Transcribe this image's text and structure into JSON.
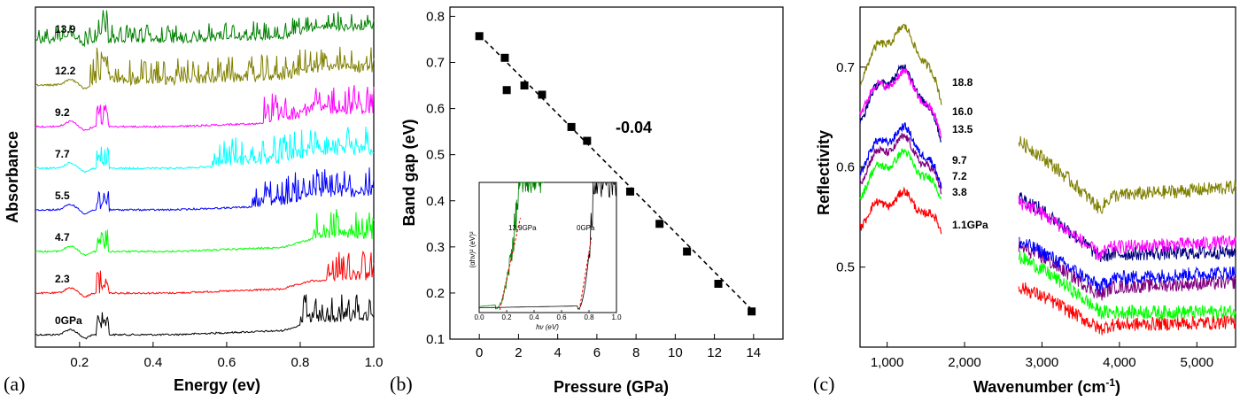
{
  "chart_data": [
    {
      "panel": "(a)",
      "type": "line",
      "xlabel": "Energy (ev)",
      "ylabel": "Absorbance",
      "xlim": [
        0.08,
        1.0
      ],
      "xticks": [
        "0.2",
        "0.4",
        "0.6",
        "0.8",
        "1.0"
      ],
      "grid": false,
      "series": [
        {
          "name": "0GPa",
          "color": "#000000",
          "offset": 0,
          "noise_start": 0.8
        },
        {
          "name": "2.3",
          "color": "#ff0000",
          "offset": 1,
          "noise_start": 0.87
        },
        {
          "name": "4.7",
          "color": "#00ff00",
          "offset": 2,
          "noise_start": 0.83
        },
        {
          "name": "5.5",
          "color": "#0000ff",
          "offset": 3,
          "noise_start": 0.67
        },
        {
          "name": "7.7",
          "color": "#00ffff",
          "offset": 4,
          "noise_start": 0.56
        },
        {
          "name": "9.2",
          "color": "#ff00ff",
          "offset": 5,
          "noise_start": 0.7
        },
        {
          "name": "12.2",
          "color": "#808000",
          "offset": 6,
          "noise_start": 0.23
        },
        {
          "name": "13.9",
          "color": "#008000",
          "offset": 7,
          "noise_start": 0.08
        }
      ]
    },
    {
      "panel": "(b)",
      "type": "scatter",
      "xlabel": "Pressure (GPa)",
      "ylabel": "Band gap (eV)",
      "xlim": [
        -1.5,
        15.5
      ],
      "ylim": [
        0.1,
        0.82
      ],
      "xticks": [
        0,
        2,
        4,
        6,
        8,
        10,
        12,
        14
      ],
      "yticks": [
        0.1,
        0.2,
        0.3,
        0.4,
        0.5,
        0.6,
        0.7,
        0.8
      ],
      "x": [
        0,
        1.3,
        1.4,
        2.3,
        3.2,
        4.7,
        5.5,
        7.7,
        9.2,
        10.6,
        12.2,
        13.9
      ],
      "y": [
        0.757,
        0.71,
        0.64,
        0.65,
        0.63,
        0.56,
        0.53,
        0.42,
        0.35,
        0.29,
        0.22,
        0.16
      ],
      "fit": {
        "x": [
          0,
          14
        ],
        "y": [
          0.76,
          0.16
        ],
        "style": "dashed"
      },
      "annotation": "-0.04",
      "inset": {
        "xlabel": "hν (eV)",
        "ylabel": "(αhν)² (eV)²",
        "xticks": [
          "0.0",
          "0.2",
          "0.4",
          "0.6",
          "0.8",
          "1.0"
        ],
        "labels": [
          "13.9GPa",
          "0GPa"
        ]
      }
    },
    {
      "panel": "(c)",
      "type": "line",
      "xlabel": "Wavenumber (cm",
      "xlabel_sup": "-1",
      "xlabel_end": ")",
      "ylabel": "Reflectivity",
      "xlim": [
        650,
        5500
      ],
      "ylim": [
        0.42,
        0.76
      ],
      "xticks": [
        1000,
        2000,
        3000,
        4000,
        5000
      ],
      "xtick_labels": [
        "1,000",
        "2,000",
        "3,000",
        "4,000",
        "5,000"
      ],
      "yticks": [
        0.5,
        0.6,
        0.7
      ],
      "ytick_labels": [
        "0.5",
        "0.6",
        "0.7"
      ],
      "gap": [
        1700,
        2700
      ],
      "series": [
        {
          "name": "1.1GPa",
          "color": "#ff0000",
          "low": {
            "start": 0.545,
            "peak": 0.57,
            "end": 0.535
          },
          "high": {
            "start": 0.48,
            "dip": 0.438,
            "end": 0.445
          }
        },
        {
          "name": "3.8",
          "color": "#00ff00",
          "low": {
            "start": 0.575,
            "peak": 0.61,
            "end": 0.567
          },
          "high": {
            "start": 0.51,
            "dip": 0.455,
            "end": 0.455
          }
        },
        {
          "name": "7.2",
          "color": "#800080",
          "low": {
            "start": 0.59,
            "peak": 0.625,
            "end": 0.575
          },
          "high": {
            "start": 0.52,
            "dip": 0.472,
            "end": 0.485
          }
        },
        {
          "name": "9.7",
          "color": "#0000ff",
          "low": {
            "start": 0.6,
            "peak": 0.635,
            "end": 0.58
          },
          "high": {
            "start": 0.525,
            "dip": 0.48,
            "end": 0.495
          }
        },
        {
          "name": "13.5",
          "color": "#000080",
          "low": {
            "start": 0.65,
            "peak": 0.695,
            "end": 0.625
          },
          "high": {
            "start": 0.57,
            "dip": 0.51,
            "end": 0.515
          }
        },
        {
          "name": "16.0",
          "color": "#ff00ff",
          "low": {
            "start": 0.66,
            "peak": 0.69,
            "end": 0.63
          },
          "high": {
            "start": 0.565,
            "dip": 0.512,
            "end": 0.525
          }
        },
        {
          "name": "18.8",
          "color": "#808000",
          "low": {
            "start": 0.69,
            "peak": 0.735,
            "end": 0.665
          },
          "high": {
            "start": 0.625,
            "dip": 0.558,
            "end": 0.58
          }
        }
      ]
    }
  ]
}
